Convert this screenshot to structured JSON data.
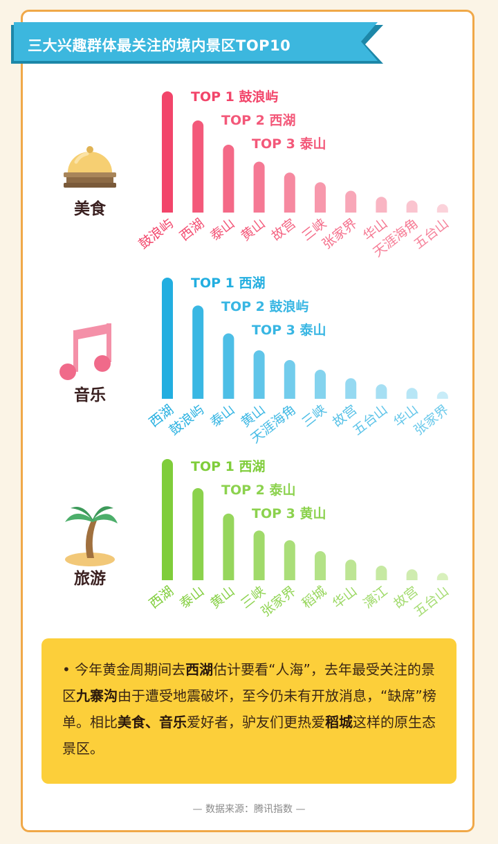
{
  "title": "三大兴趣群体最关注的境内景区TOP10",
  "colors": {
    "border": "#f0a848",
    "banner": "#3cb7de",
    "banner_dark": "#1d87a8",
    "note_bg": "#fccf3a"
  },
  "chart_data": [
    {
      "type": "bar",
      "group": "美食",
      "icon": "food-cloche-icon",
      "color_strong": "#f2456a",
      "color_light": "#fbd2da",
      "top_labels": [
        "TOP 1 鼓浪屿",
        "TOP 2 西湖",
        "TOP 3 泰山"
      ],
      "categories": [
        "鼓浪屿",
        "西湖",
        "泰山",
        "黄山",
        "故宫",
        "三峡",
        "张家界",
        "华山",
        "天涯海角",
        "五台山"
      ],
      "values": [
        100,
        76,
        56,
        42,
        33,
        25,
        18,
        13,
        10,
        7
      ]
    },
    {
      "type": "bar",
      "group": "音乐",
      "icon": "music-note-icon",
      "color_strong": "#22aee0",
      "color_light": "#c8ecf8",
      "top_labels": [
        "TOP 1 西湖",
        "TOP 2 鼓浪屿",
        "TOP 3 泰山"
      ],
      "categories": [
        "西湖",
        "鼓浪屿",
        "泰山",
        "黄山",
        "天涯海角",
        "三峡",
        "故宫",
        "五台山",
        "华山",
        "张家界"
      ],
      "values": [
        100,
        77,
        54,
        40,
        32,
        24,
        17,
        12,
        9,
        6
      ]
    },
    {
      "type": "bar",
      "group": "旅游",
      "icon": "palm-tree-icon",
      "color_strong": "#7fcd3a",
      "color_light": "#d8f0bc",
      "top_labels": [
        "TOP 1 西湖",
        "TOP 2 泰山",
        "TOP 3 黄山"
      ],
      "categories": [
        "西湖",
        "泰山",
        "黄山",
        "三峡",
        "张家界",
        "稻城",
        "华山",
        "漓江",
        "故宫",
        "五台山"
      ],
      "values": [
        100,
        76,
        55,
        41,
        33,
        24,
        17,
        12,
        9,
        6
      ]
    }
  ],
  "note": {
    "bullet": "•",
    "segments": [
      {
        "t": " 今年黄金周期间去",
        "b": false
      },
      {
        "t": "西湖",
        "b": true
      },
      {
        "t": "估计要看“人海”，去年最受关注的景区",
        "b": false
      },
      {
        "t": "九寨沟",
        "b": true
      },
      {
        "t": "由于遭受地震破坏，至今仍未有开放消息，“缺席”榜单。相比",
        "b": false
      },
      {
        "t": "美食、音乐",
        "b": true
      },
      {
        "t": "爱好者，驴友们更热爱",
        "b": false
      },
      {
        "t": "稻城",
        "b": true
      },
      {
        "t": "这样的原生态景区。",
        "b": false
      }
    ]
  },
  "source": "— 数据来源：腾讯指数 —"
}
